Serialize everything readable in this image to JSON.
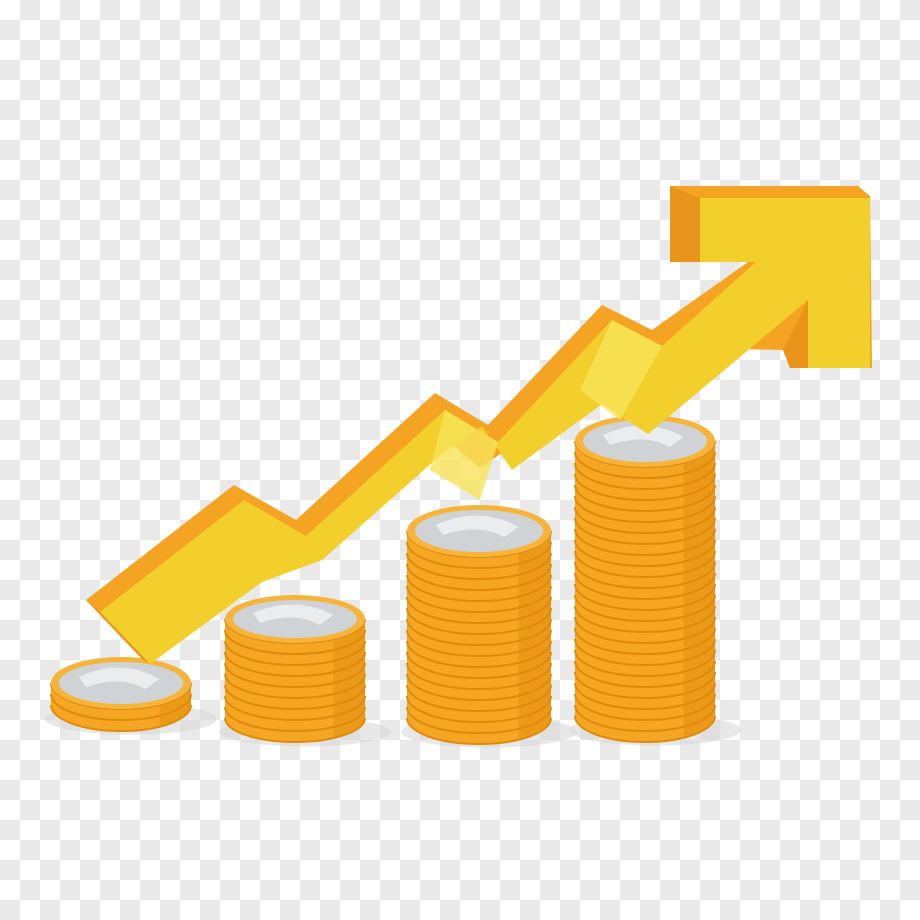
{
  "illustration": {
    "subject": "coin-stacks-with-rising-arrow",
    "colors": {
      "coin_side": "#f5a623",
      "coin_side_shadow": "#e08a0c",
      "coin_rim": "#f7b43a",
      "coin_face": "#cfd3d6",
      "coin_face_light": "#eceeef",
      "arrow_front": "#f2cf2b",
      "arrow_light": "#f7e45a",
      "arrow_top": "#f5a323",
      "arrow_side": "#e9941a",
      "shadow": "#d9d9d9"
    },
    "stacks": [
      {
        "id": "stack-1",
        "coins": 3
      },
      {
        "id": "stack-2",
        "coins": 10
      },
      {
        "id": "stack-3",
        "coins": 18
      },
      {
        "id": "stack-4",
        "coins": 26
      }
    ]
  }
}
